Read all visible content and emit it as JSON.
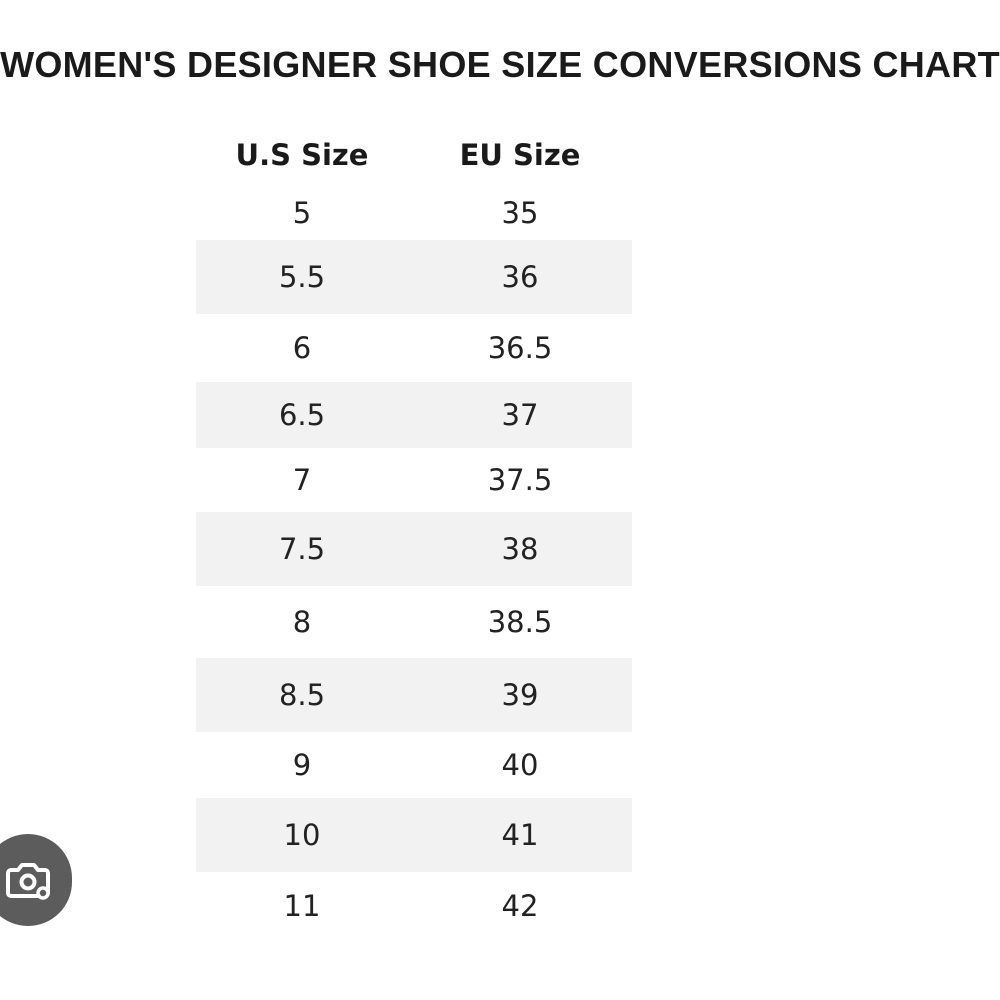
{
  "title": "WOMEN'S DESIGNER SHOE SIZE CONVERSIONS CHART",
  "table": {
    "headers": [
      "U.S Size",
      "EU Size"
    ],
    "rows": [
      {
        "us": "5",
        "eu": "35",
        "shaded": false
      },
      {
        "us": "5.5",
        "eu": "36",
        "shaded": true
      },
      {
        "us": "6",
        "eu": "36.5",
        "shaded": false
      },
      {
        "us": "6.5",
        "eu": "37",
        "shaded": true
      },
      {
        "us": "7",
        "eu": "37.5",
        "shaded": false
      },
      {
        "us": "7.5",
        "eu": "38",
        "shaded": true
      },
      {
        "us": "8",
        "eu": "38.5",
        "shaded": false
      },
      {
        "us": "8.5",
        "eu": "39",
        "shaded": true
      },
      {
        "us": "9",
        "eu": "40",
        "shaded": false
      },
      {
        "us": "10",
        "eu": "41",
        "shaded": true
      },
      {
        "us": "11",
        "eu": "42",
        "shaded": false
      }
    ]
  },
  "colors": {
    "text": "#1a1a1a",
    "row_shade": "#f2f2f2",
    "camera_button": "#5c5c5c"
  },
  "icons": {
    "camera_button": "lens-camera-icon"
  }
}
